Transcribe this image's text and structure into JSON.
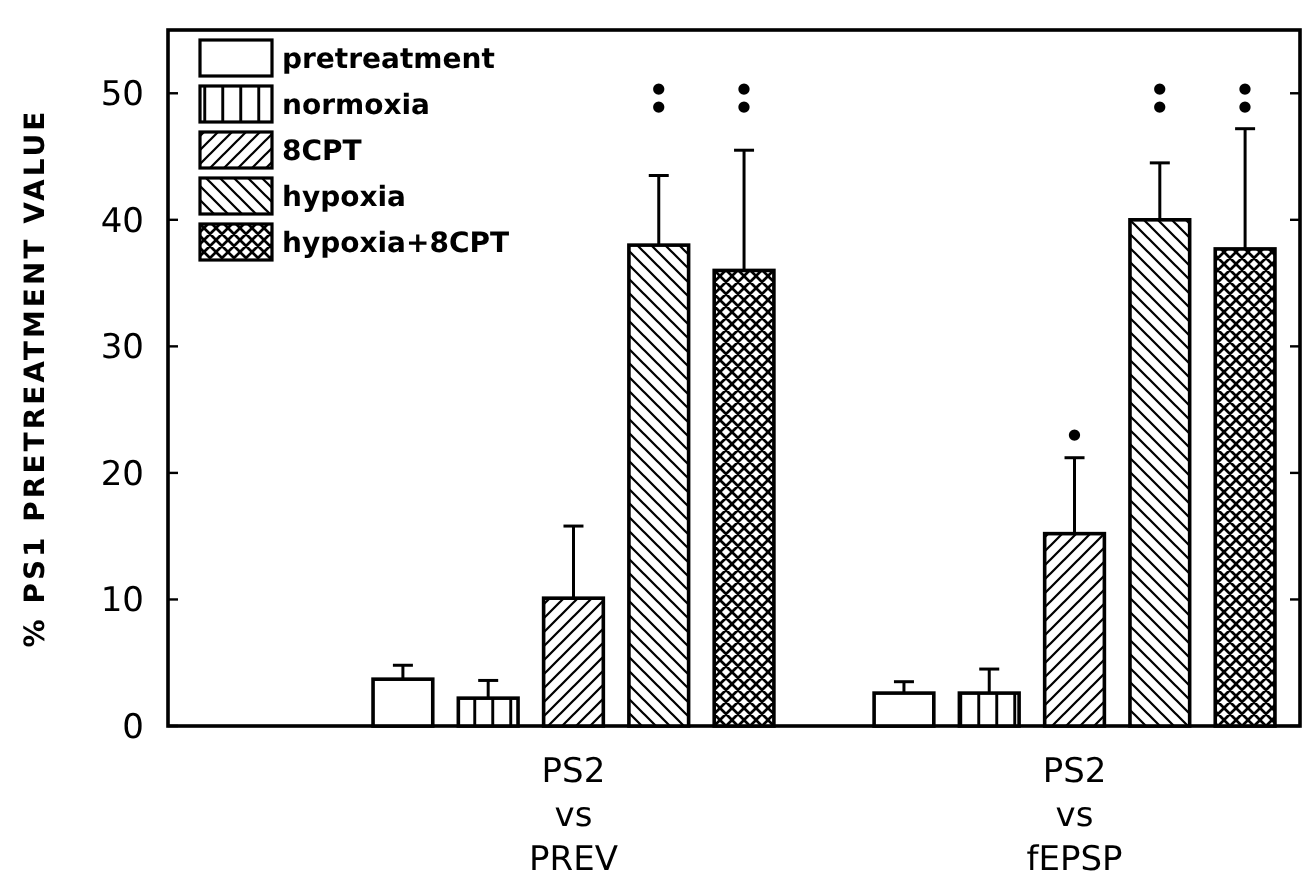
{
  "chart_data": {
    "type": "bar",
    "ylabel": "% PS1 PRETREATMENT VALUE",
    "categories": [
      "PS2 vs PREV",
      "PS2 vs fEPSP"
    ],
    "series": [
      {
        "name": "pretreatment",
        "color": "#000000",
        "values": [
          3.7,
          2.6
        ],
        "errors": [
          1.1,
          0.9
        ]
      },
      {
        "name": "normoxia",
        "color": "#000000",
        "values": [
          2.2,
          2.6
        ],
        "errors": [
          1.4,
          1.9
        ]
      },
      {
        "name": "8CPT",
        "color": "#000000",
        "values": [
          10.1,
          15.2
        ],
        "errors": [
          5.7,
          6.0
        ]
      },
      {
        "name": "hypoxia",
        "color": "#000000",
        "values": [
          38,
          40
        ],
        "errors": [
          5.5,
          4.5
        ]
      },
      {
        "name": "hypoxia+8CPT",
        "color": "#000000",
        "values": [
          36,
          37.7
        ],
        "errors": [
          9.5,
          9.5
        ]
      }
    ],
    "ylim": [
      0,
      55
    ],
    "yticks": [
      0,
      10,
      20,
      30,
      40,
      50
    ],
    "legend": "top left",
    "grid": false,
    "annotations": [
      "••",
      "••",
      "•",
      "••",
      "••"
    ]
  }
}
